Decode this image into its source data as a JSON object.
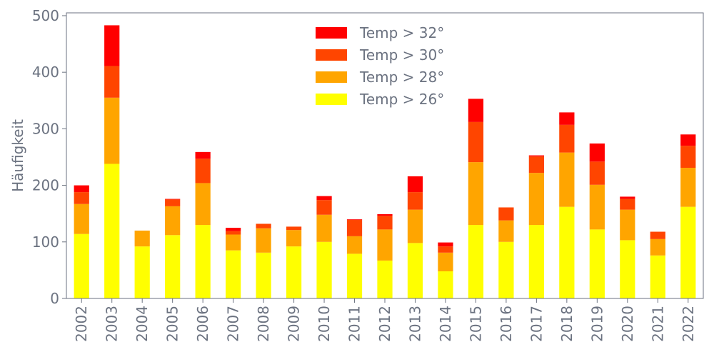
{
  "chart_data": {
    "type": "bar",
    "stacked": true,
    "title": "",
    "xlabel": "",
    "ylabel": "Häufigkeit",
    "ylim": [
      0,
      505
    ],
    "yticks": [
      0,
      100,
      200,
      300,
      400,
      500
    ],
    "grid": false,
    "legend_position": "top-center",
    "categories": [
      "2002",
      "2003",
      "2004",
      "2005",
      "2006",
      "2007",
      "2008",
      "2009",
      "2010",
      "2011",
      "2012",
      "2013",
      "2014",
      "2015",
      "2016",
      "2017",
      "2018",
      "2019",
      "2020",
      "2021",
      "2022"
    ],
    "series": [
      {
        "name": "Temp > 26°",
        "color": "#ffff00",
        "values": [
          114,
          238,
          92,
          112,
          130,
          85,
          81,
          92,
          100,
          79,
          67,
          98,
          48,
          130,
          100,
          130,
          162,
          122,
          103,
          76,
          162
        ]
      },
      {
        "name": "Temp > 28°",
        "color": "#ffa500",
        "values": [
          53,
          117,
          28,
          51,
          74,
          28,
          43,
          29,
          48,
          31,
          55,
          59,
          33,
          111,
          38,
          92,
          96,
          79,
          54,
          29,
          69
        ]
      },
      {
        "name": "Temp > 30°",
        "color": "#ff4500",
        "values": [
          21,
          56,
          0,
          12,
          43,
          6,
          8,
          6,
          26,
          29,
          24,
          31,
          11,
          71,
          23,
          29,
          49,
          41,
          19,
          13,
          39
        ]
      },
      {
        "name": "Temp > 32°",
        "color": "#ff0000",
        "values": [
          12,
          72,
          0,
          1,
          12,
          6,
          0,
          0,
          7,
          1,
          3,
          28,
          7,
          41,
          0,
          2,
          22,
          32,
          4,
          0,
          20
        ]
      }
    ]
  }
}
